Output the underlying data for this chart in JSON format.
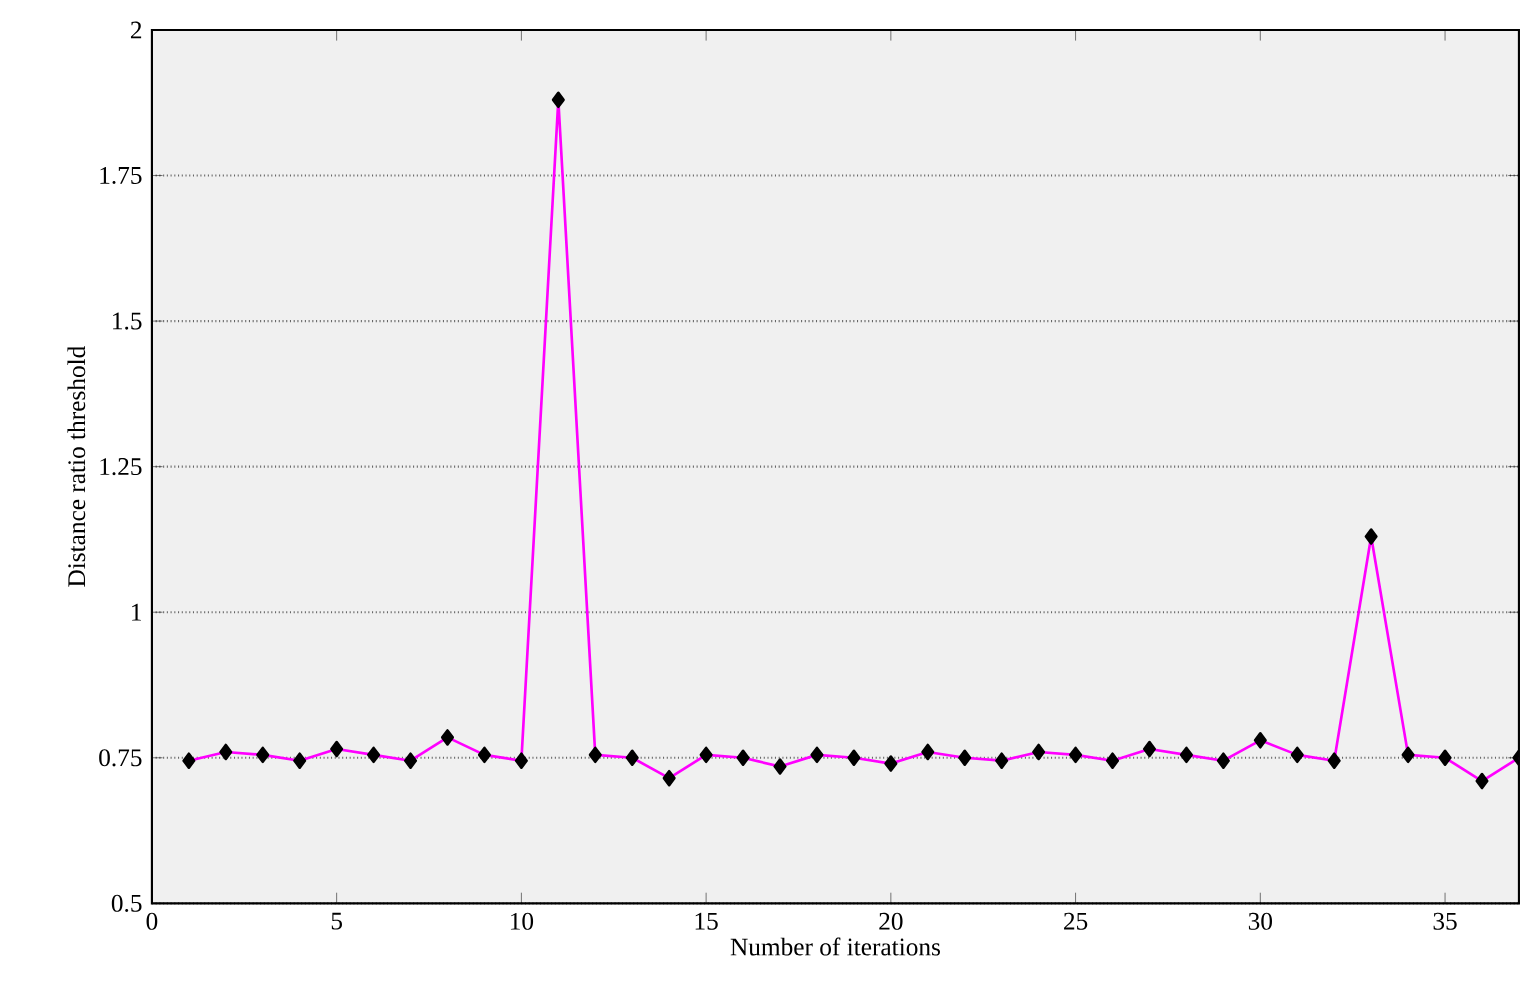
{
  "chart_data": {
    "type": "line",
    "xlabel": "Number of iterations",
    "ylabel": "Distance ratio threshold",
    "x": [
      1,
      2,
      3,
      4,
      5,
      6,
      7,
      8,
      9,
      10,
      11,
      12,
      13,
      14,
      15,
      16,
      17,
      18,
      19,
      20,
      21,
      22,
      23,
      24,
      25,
      26,
      27,
      28,
      29,
      30,
      31,
      32,
      33,
      34,
      35,
      36,
      37
    ],
    "series": [
      {
        "color": "#ff00ff",
        "values": [
          0.745,
          0.76,
          0.755,
          0.745,
          0.765,
          0.755,
          0.745,
          0.785,
          0.755,
          0.745,
          1.88,
          0.755,
          0.75,
          0.715,
          0.755,
          0.75,
          0.735,
          0.755,
          0.75,
          0.74,
          0.76,
          0.75,
          0.745,
          0.76,
          0.755,
          0.745,
          0.765,
          0.755,
          0.745,
          0.78,
          0.755,
          0.745,
          1.13,
          0.755,
          0.75,
          0.71,
          0.75
        ]
      }
    ],
    "marker": "diamond",
    "line_style": "solid",
    "grid": "y",
    "xlim": [
      0,
      37
    ],
    "ylim": [
      0.5,
      2
    ],
    "xticks": [
      0,
      5,
      10,
      15,
      20,
      25,
      30,
      35
    ],
    "yticks": [
      0.5,
      0.75,
      1,
      1.25,
      1.5,
      1.75,
      2
    ]
  }
}
